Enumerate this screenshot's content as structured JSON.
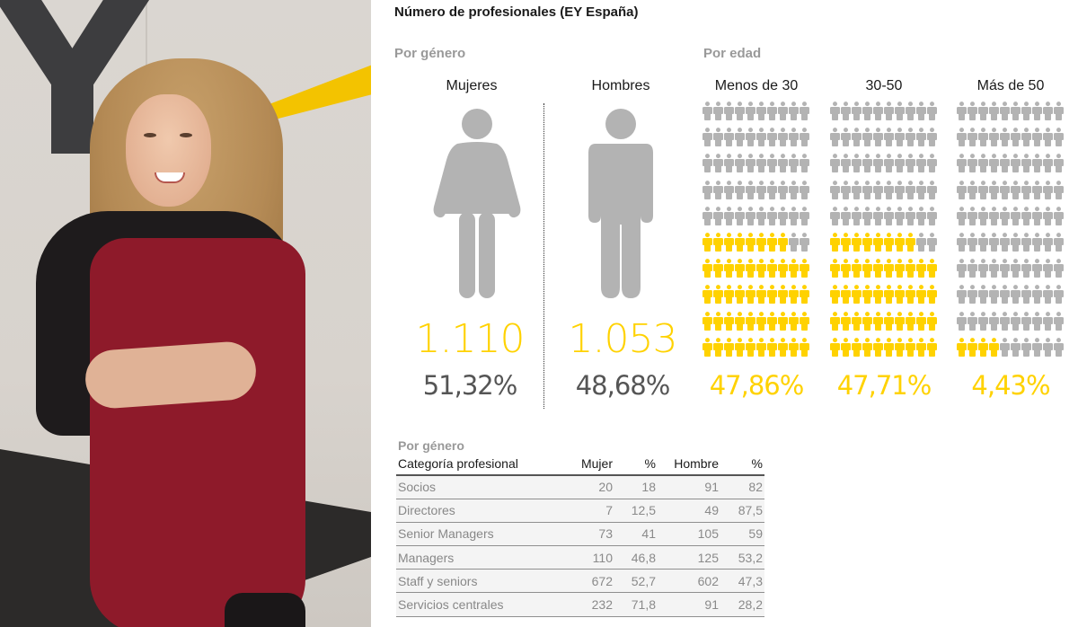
{
  "title": "Número de profesionales (EY España)",
  "colors": {
    "accent_yellow": "#ffd200",
    "figure_gray": "#b3b3b3",
    "label_gray": "#999999",
    "pct_gray": "#555555"
  },
  "by_gender": {
    "label": "Por género",
    "women": {
      "label": "Mujeres",
      "count": "1.110",
      "pct": "51,32%",
      "icon": "woman-icon"
    },
    "men": {
      "label": "Hombres",
      "count": "1.053",
      "pct": "48,68%",
      "icon": "man-icon"
    }
  },
  "by_age": {
    "label": "Por edad",
    "groups": [
      {
        "label": "Menos de 30",
        "pct": "47,86%",
        "filled": 48
      },
      {
        "label": "30-50",
        "pct": "47,71%",
        "filled": 48
      },
      {
        "label": "Más de 50",
        "pct": "4,43%",
        "filled": 4
      }
    ]
  },
  "table": {
    "subtitle": "Por género",
    "headers": [
      "Categoría profesional",
      "Mujer",
      "%",
      "Hombre",
      "%"
    ],
    "rows": [
      [
        "Socios",
        "20",
        "18",
        "91",
        "82"
      ],
      [
        "Directores",
        "7",
        "12,5",
        "49",
        "87,5"
      ],
      [
        "Senior Managers",
        "73",
        "41",
        "105",
        "59"
      ],
      [
        "Managers",
        "110",
        "46,8",
        "125",
        "53,2"
      ],
      [
        "Staff y seniors",
        "672",
        "52,7",
        "602",
        "47,3"
      ],
      [
        "Servicios centrales",
        "232",
        "71,8",
        "91",
        "28,2"
      ]
    ]
  },
  "chart_data": [
    {
      "type": "pictogram",
      "title": "Número de profesionales (EY España) — Por género",
      "categories": [
        "Mujeres",
        "Hombres"
      ],
      "values": [
        1110,
        1053
      ],
      "percentages": [
        51.32,
        48.68
      ]
    },
    {
      "type": "pictogram",
      "title": "Número de profesionales (EY España) — Por edad",
      "categories": [
        "Menos de 30",
        "30-50",
        "Más de 50"
      ],
      "percentages": [
        47.86,
        47.71,
        4.43
      ],
      "grid": "10x10 figures per group, yellow = share",
      "filled_figures": [
        48,
        48,
        4
      ]
    },
    {
      "type": "table",
      "title": "Por género — Categoría profesional",
      "columns": [
        "Categoría profesional",
        "Mujer",
        "% Mujer",
        "Hombre",
        "% Hombre"
      ],
      "rows": [
        [
          "Socios",
          20,
          18,
          91,
          82
        ],
        [
          "Directores",
          7,
          12.5,
          49,
          87.5
        ],
        [
          "Senior Managers",
          73,
          41,
          105,
          59
        ],
        [
          "Managers",
          110,
          46.8,
          125,
          53.2
        ],
        [
          "Staff y seniors",
          672,
          52.7,
          602,
          47.3
        ],
        [
          "Servicios centrales",
          232,
          71.8,
          91,
          28.2
        ]
      ]
    }
  ]
}
